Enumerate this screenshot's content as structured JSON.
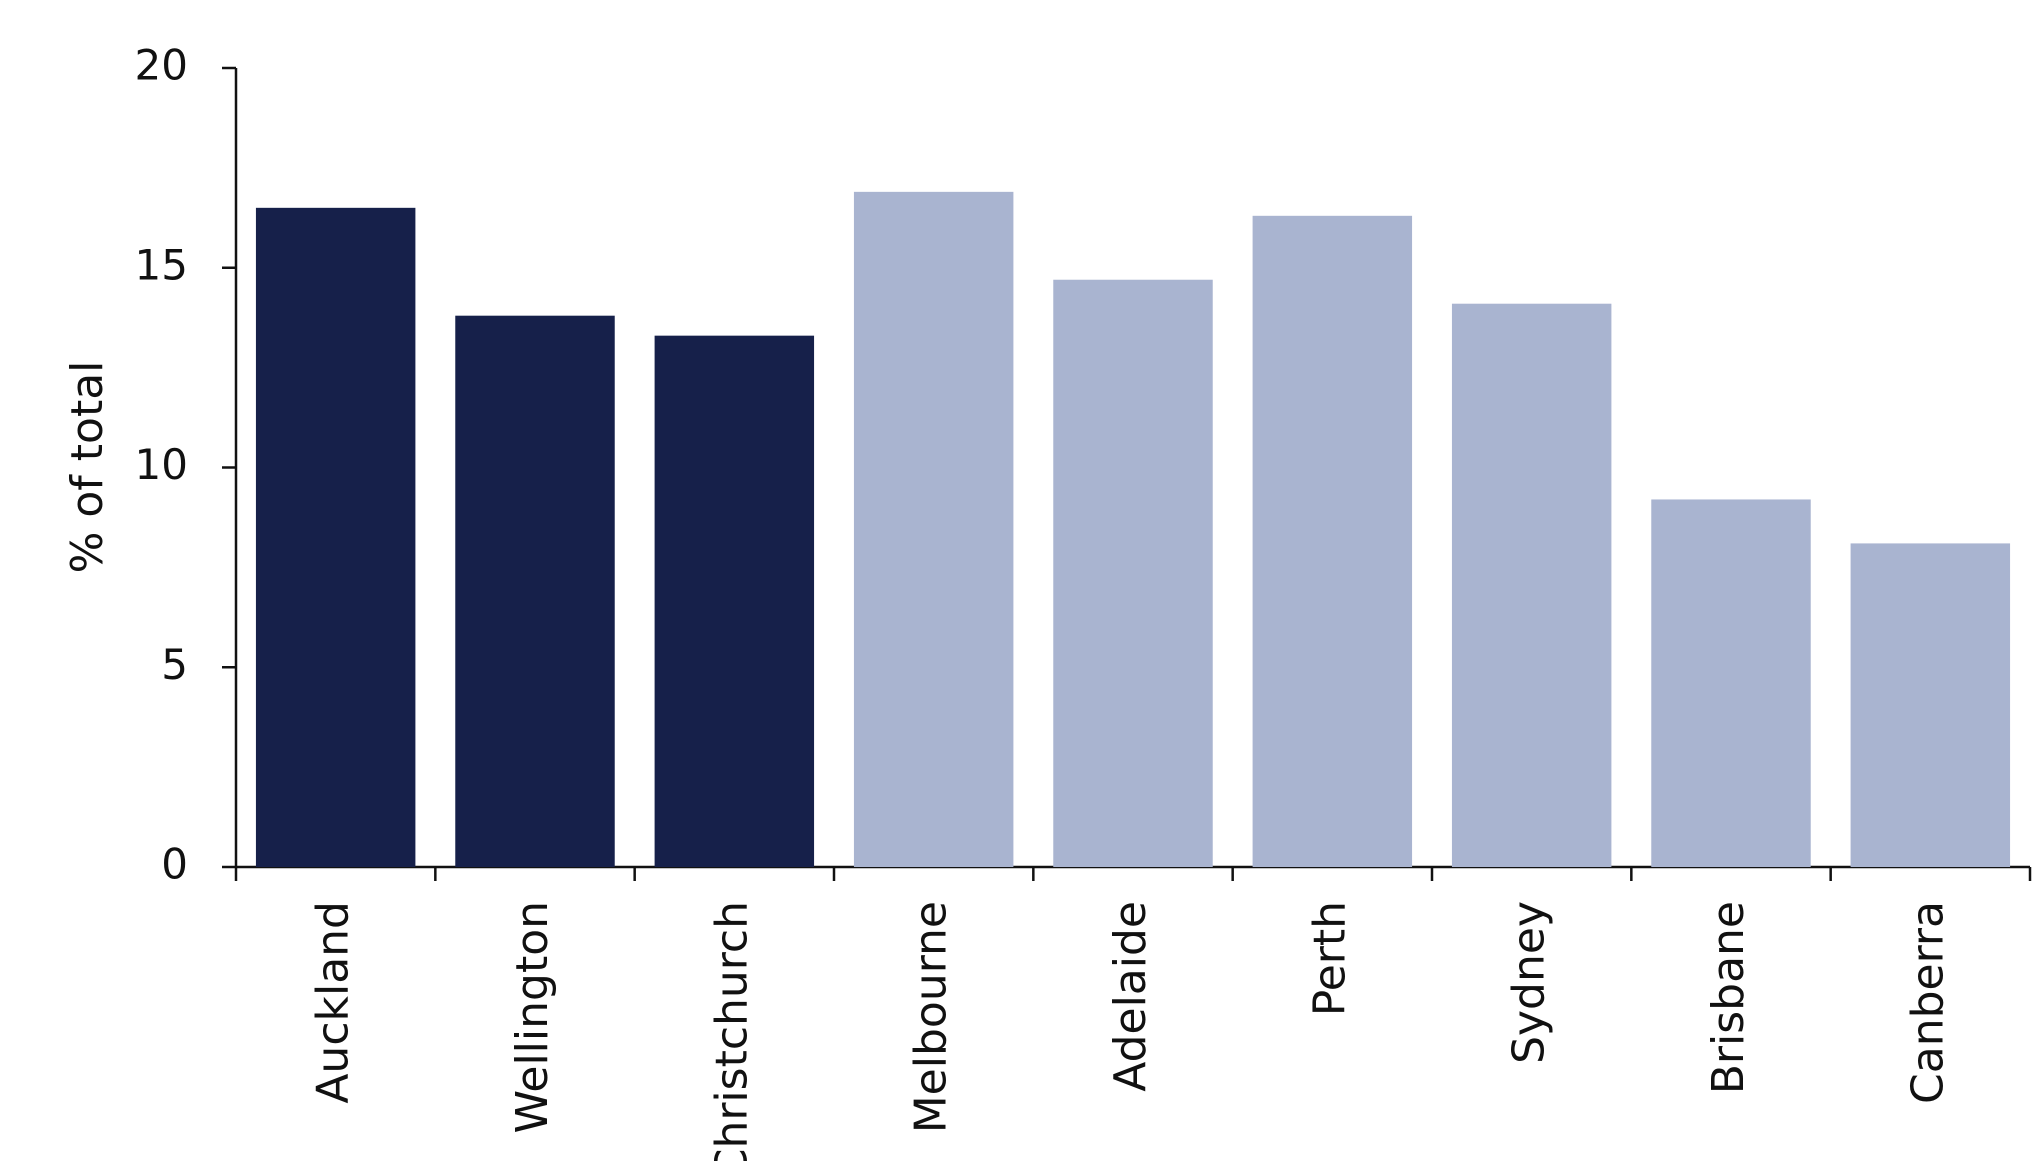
{
  "chart_data": {
    "type": "bar",
    "y_label": "% of total",
    "categories": [
      "Auckland",
      "Wellington",
      "Christchurch",
      "Melbourne",
      "Adelaide",
      "Perth",
      "Sydney",
      "Brisbane",
      "Canberra"
    ],
    "values": [
      16.5,
      13.8,
      13.3,
      16.9,
      14.7,
      16.3,
      14.1,
      9.2,
      8.1
    ],
    "colors": [
      "#16204a",
      "#16204a",
      "#16204a",
      "#a9b4d0",
      "#a9b4d0",
      "#a9b4d0",
      "#a9b4d0",
      "#a9b4d0",
      "#a9b4d0"
    ],
    "ylim": [
      0,
      20
    ],
    "yticks": [
      0,
      5,
      10,
      15,
      20
    ],
    "grid": false
  }
}
